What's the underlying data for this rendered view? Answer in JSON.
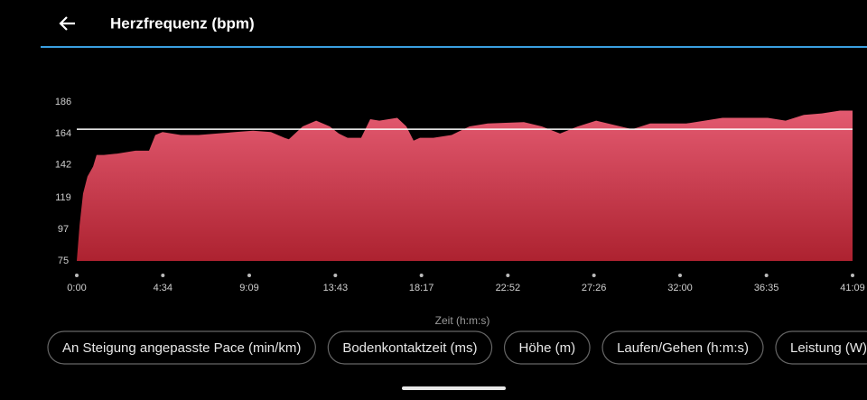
{
  "header": {
    "title": "Herzfrequenz (bpm)"
  },
  "chart_data": {
    "type": "area",
    "x_label": "Zeit (h:m:s)",
    "x": [
      0,
      9,
      20,
      34,
      52,
      63,
      86,
      129,
      158,
      187,
      230,
      250,
      273,
      331,
      388,
      446,
      503,
      561,
      618,
      661,
      675,
      719,
      762,
      805,
      834,
      862,
      905,
      934,
      963,
      1020,
      1049,
      1072,
      1092,
      1135,
      1193,
      1250,
      1308,
      1423,
      1480,
      1538,
      1595,
      1653,
      1710,
      1768,
      1825,
      1940,
      1998,
      2055,
      2141,
      2199,
      2256,
      2314,
      2371,
      2429,
      2469
    ],
    "series": [
      {
        "color": "#e35a70",
        "color_bottom": "#ad2230",
        "values": [
          75,
          100,
          122,
          134,
          141,
          149,
          149,
          150,
          151,
          152,
          152,
          163,
          165,
          163,
          163,
          164,
          165,
          166,
          165,
          161,
          160,
          169,
          173,
          169,
          164,
          161,
          161,
          174,
          173,
          175,
          169,
          159,
          161,
          161,
          163,
          169,
          171,
          172,
          169,
          164,
          169,
          173,
          170,
          167,
          171,
          171,
          173,
          175,
          175,
          175,
          173,
          177,
          178,
          180,
          180
        ]
      }
    ],
    "reference_line": 167,
    "reference_color": "#ffffff",
    "xlim": [
      0,
      2469
    ],
    "xticks": [
      {
        "value": 0,
        "label": "0:00"
      },
      {
        "value": 274,
        "label": "4:34"
      },
      {
        "value": 549,
        "label": "9:09"
      },
      {
        "value": 823,
        "label": "13:43"
      },
      {
        "value": 1097,
        "label": "18:17"
      },
      {
        "value": 1372,
        "label": "22:52"
      },
      {
        "value": 1646,
        "label": "27:26"
      },
      {
        "value": 1920,
        "label": "32:00"
      },
      {
        "value": 2195,
        "label": "36:35"
      },
      {
        "value": 2469,
        "label": "41:09"
      }
    ],
    "ylim": [
      75,
      186
    ],
    "yticks": [
      75,
      97,
      119,
      142,
      164,
      186
    ]
  },
  "chips": [
    "An Steigung angepasste Pace (min/km)",
    "Bodenkontaktzeit (ms)",
    "Höhe (m)",
    "Laufen/Gehen (h:m:s)",
    "Leistung (W)"
  ]
}
